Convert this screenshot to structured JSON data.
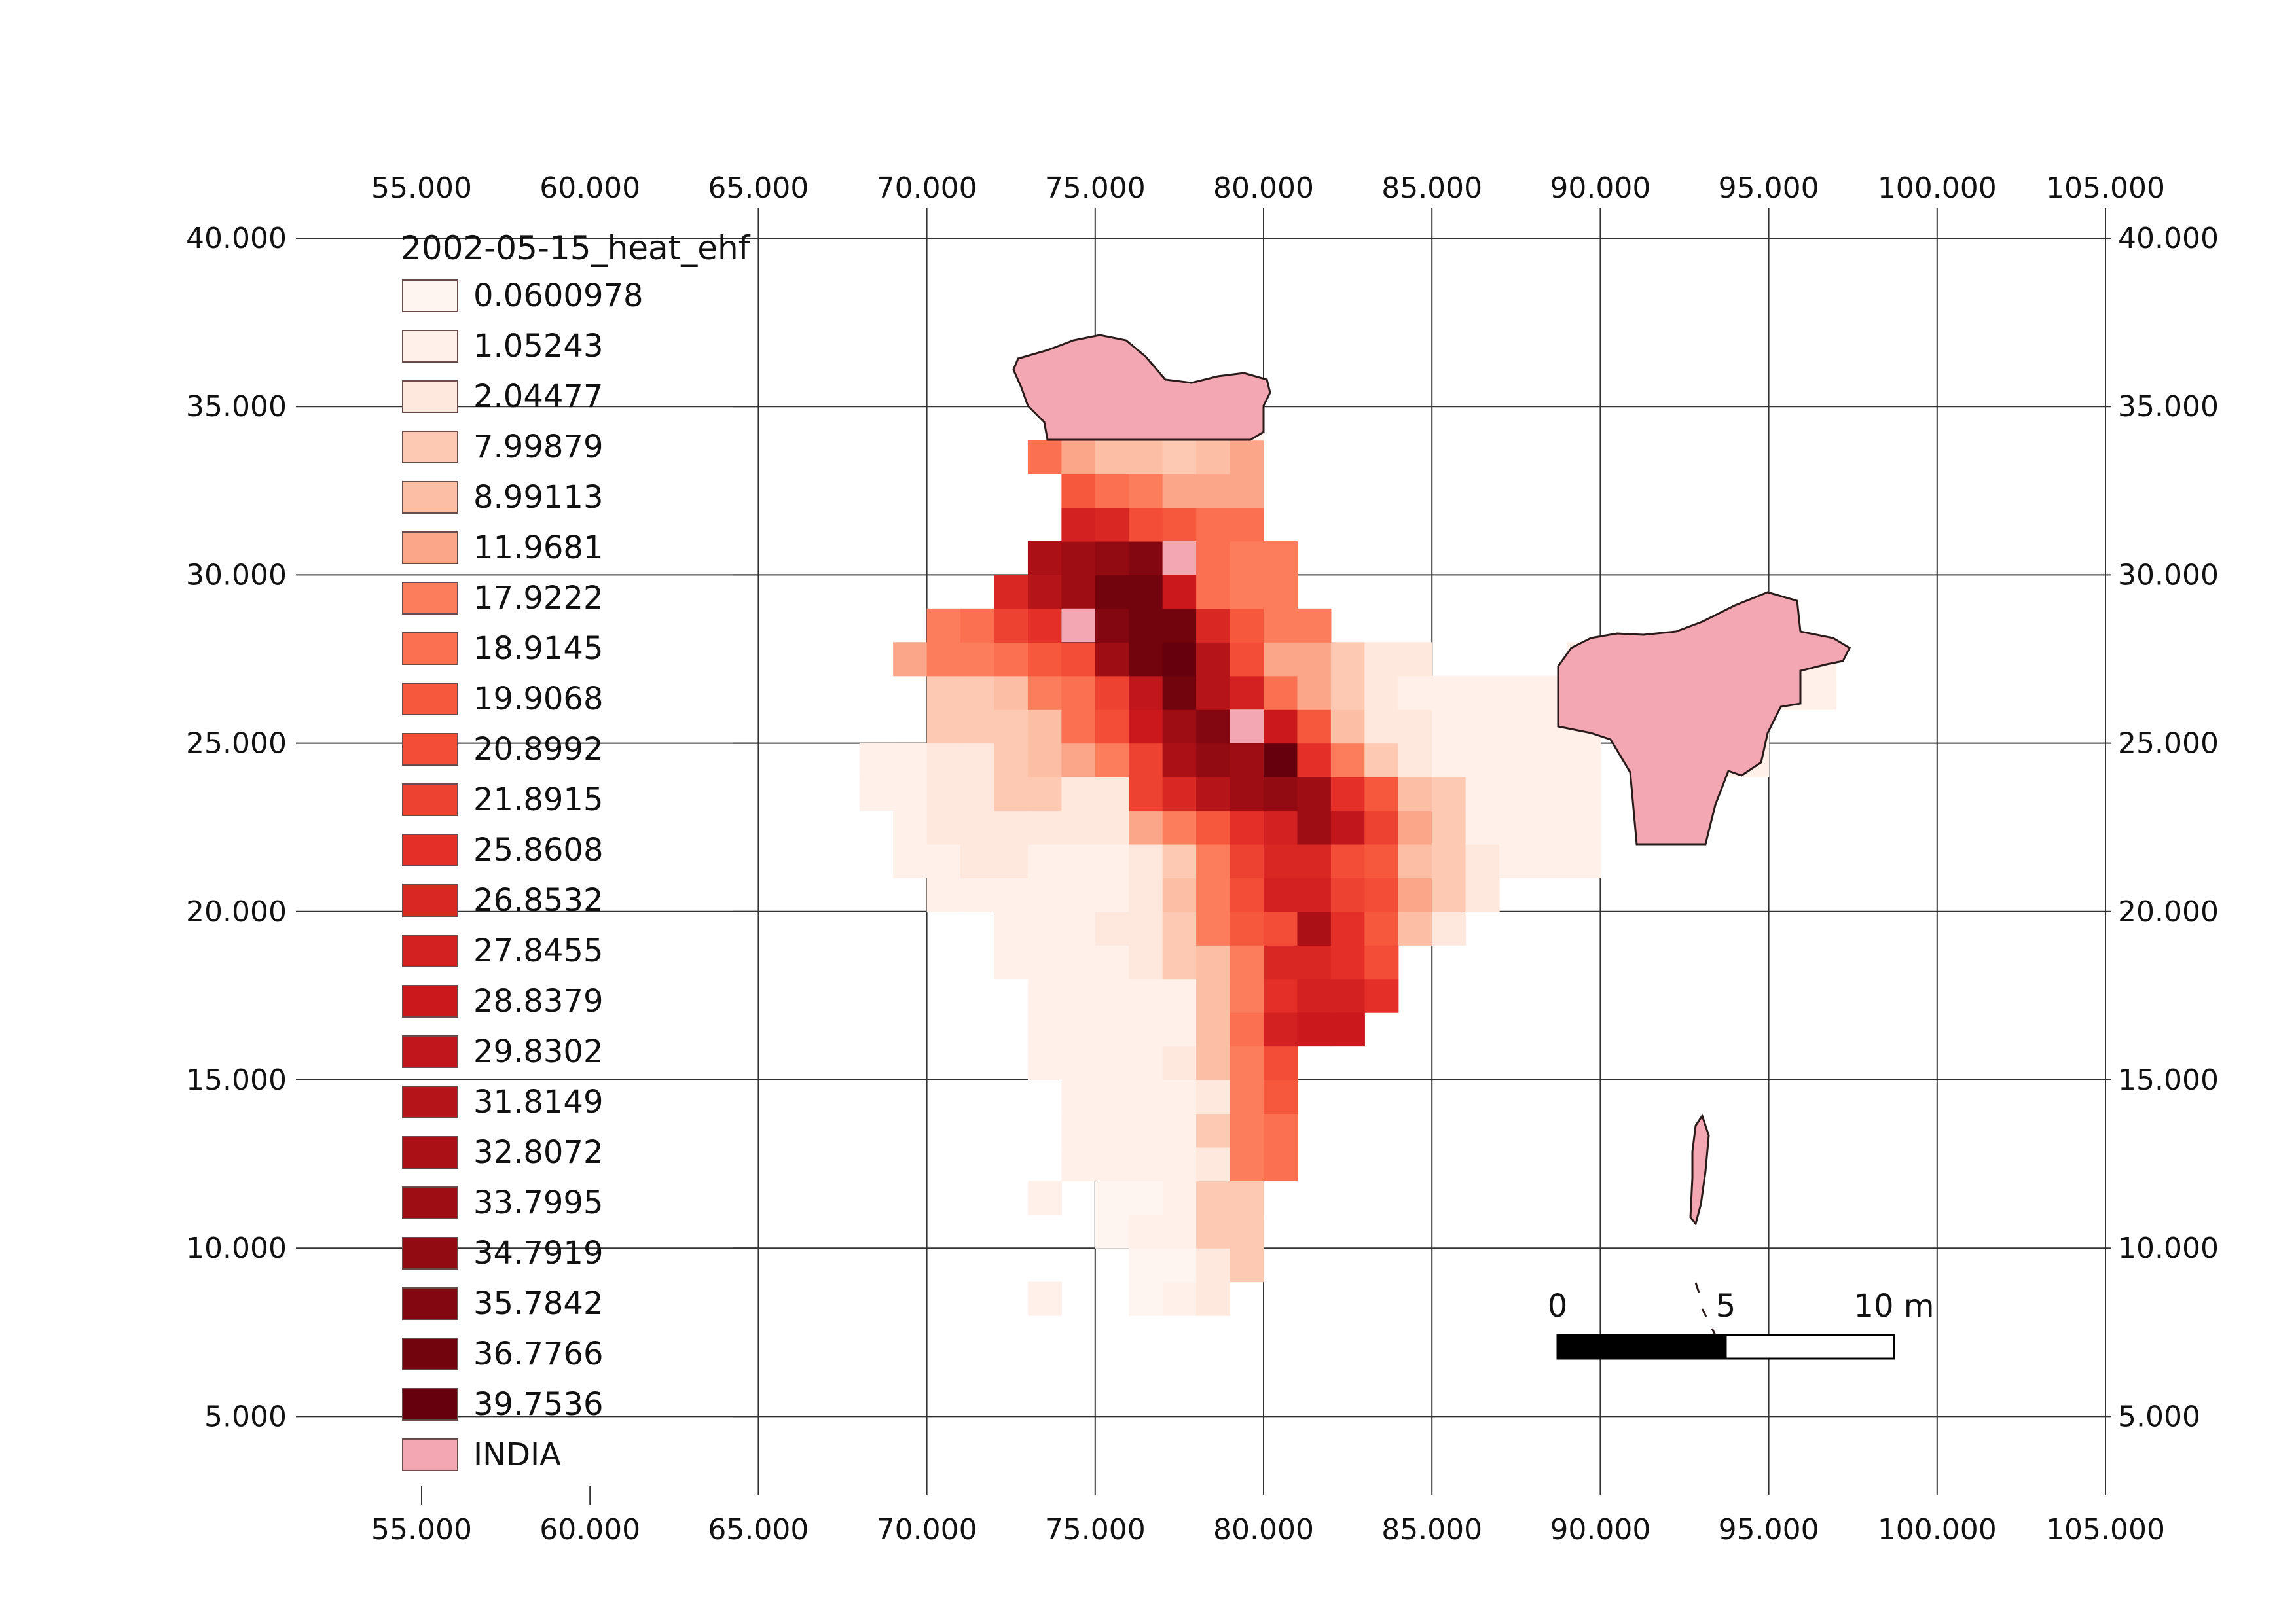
{
  "map": {
    "legend_title": "2002-05-15_heat_ehf",
    "legend": [
      {
        "label": "0.0600978",
        "color": "#fff5f0"
      },
      {
        "label": "1.05243",
        "color": "#fff0ea"
      },
      {
        "label": "2.04477",
        "color": "#fee8de"
      },
      {
        "label": "7.99879",
        "color": "#fdc9b3"
      },
      {
        "label": "8.99113",
        "color": "#fcbea5"
      },
      {
        "label": "11.9681",
        "color": "#fca689"
      },
      {
        "label": "17.9222",
        "color": "#fb7d5b"
      },
      {
        "label": "18.9145",
        "color": "#fb7050"
      },
      {
        "label": "19.9068",
        "color": "#f6583e"
      },
      {
        "label": "20.8992",
        "color": "#f34c37"
      },
      {
        "label": "21.8915",
        "color": "#ed4232"
      },
      {
        "label": "25.8608",
        "color": "#e32f27"
      },
      {
        "label": "26.8532",
        "color": "#d92723"
      },
      {
        "label": "27.8455",
        "color": "#d32020"
      },
      {
        "label": "28.8379",
        "color": "#cb181d"
      },
      {
        "label": "29.8302",
        "color": "#c0161c"
      },
      {
        "label": "31.8149",
        "color": "#b51419"
      },
      {
        "label": "32.8072",
        "color": "#aa1016"
      },
      {
        "label": "33.7995",
        "color": "#9f0d14"
      },
      {
        "label": "34.7919",
        "color": "#920b12"
      },
      {
        "label": "35.7842",
        "color": "#820710"
      },
      {
        "label": "36.7766",
        "color": "#72040d"
      },
      {
        "label": "39.7536",
        "color": "#67000d"
      },
      {
        "label": "INDIA",
        "color": "#f2a7b2"
      }
    ],
    "x_ticks": [
      "55.000",
      "60.000",
      "65.000",
      "70.000",
      "75.000",
      "80.000",
      "85.000",
      "90.000",
      "95.000",
      "100.000",
      "105.000"
    ],
    "y_ticks": [
      "40.000",
      "35.000",
      "30.000",
      "25.000",
      "20.000",
      "15.000",
      "10.000",
      "5.000"
    ],
    "scale_bar": {
      "labels": [
        "0",
        "5",
        "10 m"
      ]
    },
    "grid": true
  }
}
